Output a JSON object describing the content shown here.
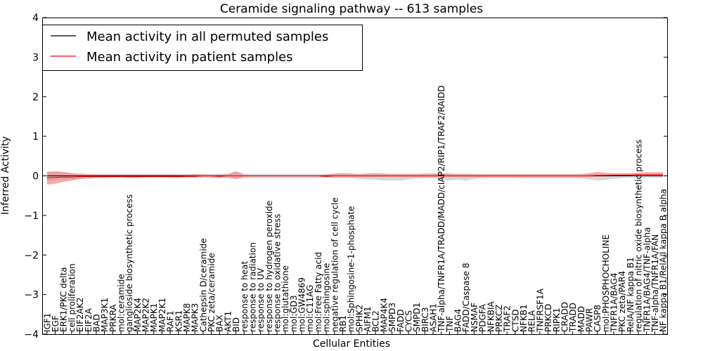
{
  "chart_data": {
    "type": "line",
    "title": "Ceramide signaling pathway -- 613 samples",
    "xlabel": "Cellular Entities",
    "ylabel": "Inferred Activity",
    "ylim": [
      -4,
      4
    ],
    "yticks": [
      "4",
      "3",
      "2",
      "1",
      "0",
      "−1",
      "−2",
      "−3",
      "−4"
    ],
    "legend_position": "top-left",
    "grid": false,
    "categories": [
      "IGF1",
      "EGF",
      "ERK1/PKC delta",
      "cell proliferation",
      "EIF2AK2",
      "EIF2A",
      "BAD",
      "MAP3K1",
      "PRKRA",
      "mol:ceramide",
      "ganglioside biosynthetic process",
      "MAP2K4",
      "MAP2K2",
      "MAPK1",
      "MAP2K1",
      "RAF1",
      "KSR1",
      "MAPK8",
      "MAPK3",
      "Cathepsin D/ceramide",
      "PKC zeta/ceramide",
      "BAX",
      "AKT1",
      "BID",
      "response to heat",
      "response to radiation",
      "response to UV",
      "response to hydrogen peroxide",
      "response to oxidative stress",
      "mol:glutathione",
      "mol:GD3",
      "mol:GW4869",
      "mol:C11AG",
      "mol:Free Fatty acid",
      "mol:sphingosine",
      "negative regulation of cell cycle",
      "RB1",
      "mol:Sphingosine-1-phosphate",
      "SPHK2",
      "AIFM1",
      "BCL2",
      "MAP4K4",
      "SMPD3",
      "FADD",
      "CYCS",
      "SMPD1",
      "BIRC3",
      "ASAH1",
      "TNF-alpha/TNFR1A/TRADD/MADD/cIAP2/RIP1/TRAF2/RAIDD",
      "TNF",
      "BAG4",
      "FADD/Caspase 8",
      "NSMAF",
      "PDGFA",
      "NFKBIA",
      "PRKCZ",
      "TRAF2",
      "CTSD",
      "NFKB1",
      "RELA",
      "TNFRSF1A",
      "PRKCD",
      "RIPK1",
      "CRADD",
      "TRADD",
      "MADD",
      "PAWR",
      "CASP8",
      "mol:PHOSPHOCHOLINE",
      "TNFR1A/BAG4",
      "PKC zeta/PAR4",
      "RelA/NF kappa B1",
      "regulation of nitric oxide biosynthetic process",
      "TNFR1A/BAG4/TNF-alpha",
      "TNF-alpha/TNFR1A/FAN",
      "NF kappa B1/RelA/I kappa B alpha"
    ],
    "series": [
      {
        "name": "Mean activity in all permuted samples",
        "color": "#000000",
        "values": [
          0.0,
          0.0,
          0.0,
          0.0,
          0.0,
          0.0,
          0.0,
          0.0,
          0.0,
          0.0,
          0.0,
          0.0,
          0.0,
          0.0,
          0.0,
          0.0,
          0.0,
          0.0,
          0.0,
          0.0,
          0.0,
          0.0,
          0.0,
          0.0,
          0.0,
          0.0,
          0.0,
          0.0,
          0.0,
          0.0,
          0.0,
          0.0,
          0.0,
          0.0,
          0.0,
          0.0,
          0.0,
          0.0,
          0.0,
          0.0,
          0.0,
          0.0,
          0.0,
          0.0,
          0.0,
          0.0,
          0.0,
          0.0,
          0.0,
          0.0,
          0.0,
          0.0,
          0.0,
          0.0,
          0.0,
          0.0,
          0.0,
          0.0,
          0.0,
          0.0,
          0.0,
          0.0,
          0.0,
          0.0,
          0.0,
          0.0,
          0.0,
          0.0,
          0.0,
          0.0,
          0.0,
          0.0,
          0.0,
          0.0,
          0.0,
          0.0
        ],
        "band_low": [
          -0.12,
          -0.12,
          -0.1,
          -0.09,
          -0.08,
          -0.07,
          -0.06,
          -0.06,
          -0.05,
          -0.05,
          -0.06,
          -0.06,
          -0.05,
          -0.05,
          -0.05,
          -0.06,
          -0.06,
          -0.05,
          -0.05,
          -0.05,
          -0.06,
          -0.07,
          -0.06,
          -0.08,
          -0.06,
          -0.05,
          -0.05,
          -0.05,
          -0.05,
          -0.05,
          -0.05,
          -0.05,
          -0.05,
          -0.05,
          -0.05,
          -0.06,
          -0.06,
          -0.06,
          -0.08,
          -0.09,
          -0.1,
          -0.12,
          -0.12,
          -0.12,
          -0.09,
          -0.07,
          -0.07,
          -0.06,
          -0.1,
          -0.12,
          -0.1,
          -0.12,
          -0.08,
          -0.07,
          -0.06,
          -0.06,
          -0.06,
          -0.06,
          -0.07,
          -0.07,
          -0.07,
          -0.07,
          -0.07,
          -0.07,
          -0.07,
          -0.07,
          -0.09,
          -0.12,
          -0.1,
          -0.08,
          -0.06,
          -0.05,
          -0.05,
          -0.05,
          -0.05,
          -0.05
        ],
        "band_high": [
          0.1,
          0.09,
          0.08,
          0.07,
          0.06,
          0.05,
          0.05,
          0.05,
          0.05,
          0.05,
          0.05,
          0.05,
          0.05,
          0.05,
          0.05,
          0.05,
          0.05,
          0.05,
          0.05,
          0.05,
          0.05,
          0.05,
          0.06,
          0.08,
          0.05,
          0.05,
          0.05,
          0.05,
          0.05,
          0.05,
          0.05,
          0.05,
          0.05,
          0.05,
          0.05,
          0.05,
          0.05,
          0.05,
          0.05,
          0.05,
          0.05,
          0.05,
          0.05,
          0.05,
          0.05,
          0.05,
          0.05,
          0.05,
          0.05,
          0.05,
          0.05,
          0.05,
          0.05,
          0.05,
          0.05,
          0.05,
          0.05,
          0.05,
          0.05,
          0.05,
          0.05,
          0.05,
          0.05,
          0.05,
          0.05,
          0.05,
          0.05,
          0.05,
          0.05,
          0.05,
          0.05,
          0.05,
          0.05,
          0.05,
          0.05,
          0.05
        ],
        "band_color": "#c8c8c8"
      },
      {
        "name": "Mean activity in patient samples",
        "color": "#ff0000",
        "values": [
          -0.05,
          -0.04,
          -0.03,
          -0.03,
          -0.02,
          -0.02,
          -0.02,
          -0.02,
          -0.02,
          -0.02,
          -0.02,
          -0.02,
          -0.02,
          -0.02,
          -0.02,
          -0.02,
          -0.02,
          -0.01,
          -0.01,
          0.0,
          0.0,
          -0.01,
          0.0,
          0.0,
          0.0,
          0.0,
          0.0,
          0.0,
          0.0,
          0.0,
          0.0,
          0.0,
          0.0,
          0.0,
          -0.01,
          0.0,
          0.0,
          0.0,
          0.0,
          0.0,
          0.0,
          0.0,
          0.0,
          0.0,
          0.0,
          0.0,
          0.0,
          0.0,
          0.0,
          0.0,
          0.0,
          0.0,
          0.0,
          0.0,
          0.0,
          0.0,
          0.0,
          0.0,
          0.0,
          0.0,
          0.0,
          0.0,
          0.0,
          0.0,
          0.0,
          0.0,
          0.0,
          0.01,
          0.01,
          0.02,
          0.02,
          0.02,
          0.03,
          0.03,
          0.03,
          0.03
        ],
        "band_low": [
          -0.22,
          -0.2,
          -0.15,
          -0.12,
          -0.08,
          -0.06,
          -0.05,
          -0.05,
          -0.05,
          -0.04,
          -0.05,
          -0.05,
          -0.04,
          -0.04,
          -0.04,
          -0.04,
          -0.04,
          -0.04,
          -0.04,
          -0.03,
          -0.03,
          -0.04,
          -0.03,
          -0.08,
          -0.02,
          -0.02,
          -0.02,
          -0.02,
          -0.02,
          -0.02,
          -0.02,
          -0.02,
          -0.02,
          -0.02,
          -0.03,
          -0.03,
          -0.03,
          -0.03,
          -0.03,
          -0.03,
          -0.03,
          -0.03,
          -0.03,
          -0.03,
          -0.03,
          -0.03,
          -0.03,
          -0.03,
          -0.03,
          -0.03,
          -0.03,
          -0.03,
          -0.03,
          -0.03,
          -0.03,
          -0.03,
          -0.03,
          -0.03,
          -0.03,
          -0.03,
          -0.03,
          -0.03,
          -0.03,
          -0.03,
          -0.03,
          -0.03,
          -0.03,
          -0.02,
          -0.02,
          -0.01,
          -0.01,
          -0.01,
          0.0,
          0.0,
          0.0,
          0.0
        ],
        "band_high": [
          0.1,
          0.12,
          0.1,
          0.07,
          0.05,
          0.04,
          0.03,
          0.03,
          0.03,
          0.03,
          0.03,
          0.03,
          0.03,
          0.03,
          0.03,
          0.03,
          0.03,
          0.03,
          0.04,
          0.04,
          0.03,
          0.03,
          0.04,
          0.12,
          0.03,
          0.02,
          0.02,
          0.02,
          0.02,
          0.02,
          0.02,
          0.02,
          0.02,
          0.02,
          0.03,
          0.06,
          0.07,
          0.06,
          0.04,
          0.06,
          0.07,
          0.06,
          0.05,
          0.05,
          0.05,
          0.05,
          0.06,
          0.06,
          0.07,
          0.06,
          0.05,
          0.05,
          0.04,
          0.04,
          0.04,
          0.04,
          0.04,
          0.04,
          0.04,
          0.04,
          0.04,
          0.04,
          0.04,
          0.04,
          0.04,
          0.04,
          0.07,
          0.1,
          0.08,
          0.07,
          0.07,
          0.07,
          0.08,
          0.09,
          0.09,
          0.09
        ],
        "band_color": "#f08080"
      }
    ]
  }
}
